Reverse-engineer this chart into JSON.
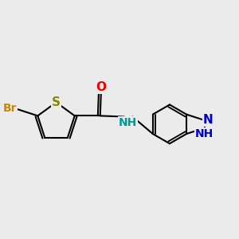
{
  "background_color": "#ebebeb",
  "figsize": [
    3.0,
    3.0
  ],
  "dpi": 100,
  "lw": 1.5,
  "bond_color": "#000000",
  "atom_colors": {
    "Br": "#cc8800",
    "S": "#888800",
    "O": "#ee0000",
    "NH_amide": "#009999",
    "N_pyrazole": "#0000cc",
    "NH_pyrazole": "#0000cc"
  },
  "atom_fontsizes": {
    "Br": 10,
    "S": 11,
    "O": 11,
    "NH_amide": 11,
    "N": 11,
    "NH": 10
  }
}
